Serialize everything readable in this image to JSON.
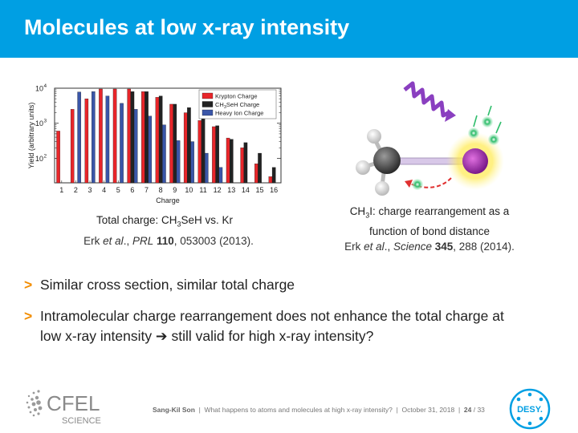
{
  "header": {
    "title": "Molecules at low x-ray intensity"
  },
  "left_panel": {
    "caption_pre": "Total charge: CH",
    "caption_sub": "3",
    "caption_post": "SeH vs. Kr",
    "ref_authors": "Erk ",
    "ref_etal": "et al",
    "ref_dot": "., ",
    "ref_journal": "PRL",
    "ref_space": " ",
    "ref_volume": "110",
    "ref_rest": ", 053003 (2013)."
  },
  "right_panel": {
    "caption_line1_pre": "CH",
    "caption_line1_sub": "3",
    "caption_line1_post": "I: charge rearrangement as a",
    "caption_line2": "function of bond distance",
    "ref_authors": "Erk ",
    "ref_etal": "et al",
    "ref_dot": "., ",
    "ref_journal": "Science",
    "ref_space": " ",
    "ref_volume": "345",
    "ref_rest": ", 288 (2014)."
  },
  "bullets": [
    {
      "marker": ">",
      "text": "Similar cross section, similar total charge"
    },
    {
      "marker": ">",
      "text": "Intramolecular charge rearrangement does not enhance the total charge at low x-ray intensity ➔ still valid for high x-ray intensity?"
    }
  ],
  "footer": {
    "logo_text": "CFEL",
    "logo_sub": "SCIENCE",
    "author": "Sang-Kil Son",
    "talk": "  |  What happens to atoms and molecules at high x-ray intensity?  |  October 31, 2018  |  ",
    "page": "24",
    "total": " / 33",
    "desy_text": "DESY."
  },
  "colors": {
    "header_bg": "#009fe3",
    "bullet_marker": "#f28c00",
    "krypton": "#e8262a",
    "ch3seh": "#222222",
    "heavy_ion": "#3a56a8"
  },
  "chart_data": {
    "type": "bar",
    "xlabel": "Charge",
    "ylabel": "Yield (arbitrary units)",
    "y_scale": "log",
    "ylim": [
      20,
      10000
    ],
    "y_ticks": [
      "10",
      "10",
      "10"
    ],
    "y_tick_exponents": [
      "2",
      "3",
      "4"
    ],
    "y_tick_values": [
      100,
      1000,
      10000
    ],
    "categories": [
      "1",
      "2",
      "3",
      "4",
      "5",
      "6",
      "7",
      "8",
      "9",
      "10",
      "11",
      "12",
      "13",
      "14",
      "15",
      "16"
    ],
    "legend_placement": "top-right",
    "series": [
      {
        "name": "Krypton Charge",
        "color": "#e8262a",
        "values": [
          600,
          2500,
          5000,
          9500,
          9500,
          9500,
          8000,
          5500,
          3500,
          2000,
          1200,
          800,
          380,
          200,
          70,
          30
        ]
      },
      {
        "name_pre": "CH",
        "name_sub": "3",
        "name_post": "SeH Charge",
        "color": "#222222",
        "values": [
          null,
          null,
          null,
          null,
          null,
          8000,
          8000,
          6000,
          3500,
          2800,
          1700,
          850,
          350,
          280,
          140,
          55
        ]
      },
      {
        "name": "Heavy Ion Charge",
        "color": "#3a56a8",
        "values": [
          null,
          7800,
          8000,
          6000,
          3700,
          2500,
          1600,
          900,
          320,
          300,
          140,
          55,
          null,
          null,
          null,
          null
        ]
      }
    ]
  }
}
